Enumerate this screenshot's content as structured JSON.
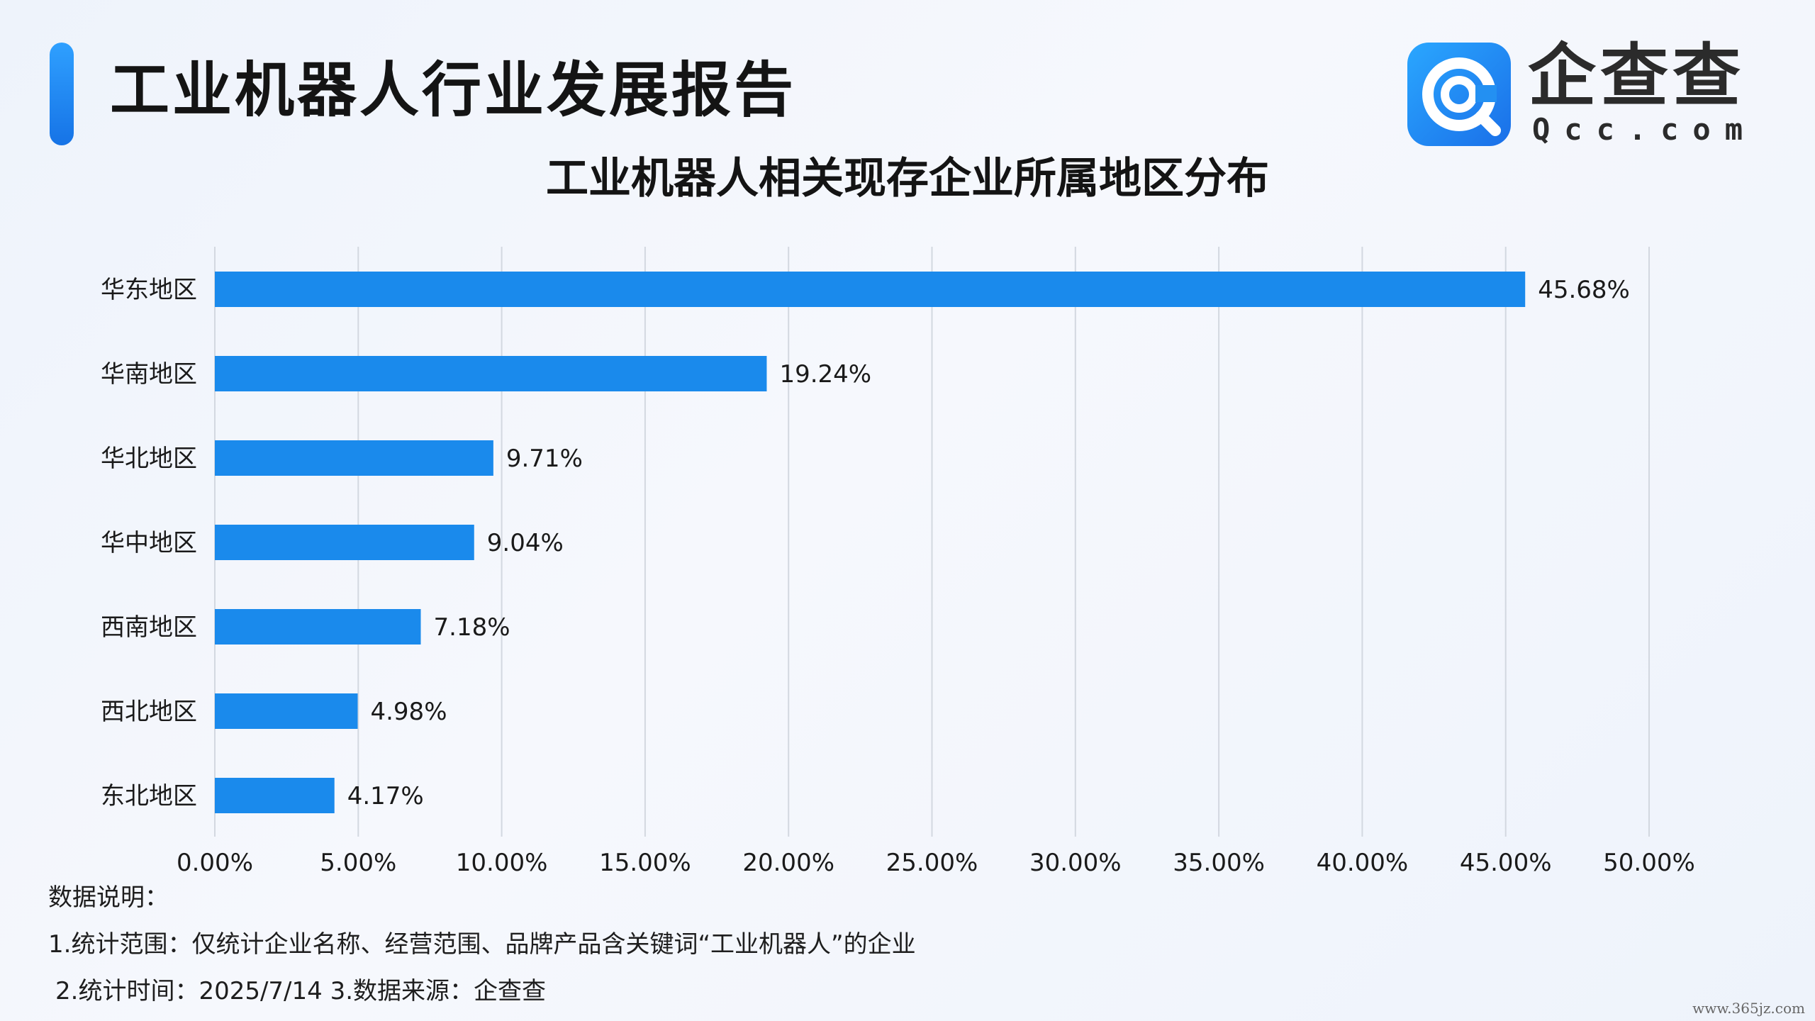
{
  "header": {
    "title": "工业机器人行业发展报告",
    "logo_name": "企查查",
    "logo_domain": "Qcc.com"
  },
  "chart_title": "工业机器人相关现存企业所属地区分布",
  "chart_data": {
    "type": "bar",
    "orientation": "horizontal",
    "title": "工业机器人相关现存企业所属地区分布",
    "categories": [
      "华东地区",
      "华南地区",
      "华北地区",
      "华中地区",
      "西南地区",
      "西北地区",
      "东北地区"
    ],
    "values": [
      45.68,
      19.24,
      9.71,
      9.04,
      7.18,
      4.98,
      4.17
    ],
    "value_labels": [
      "45.68%",
      "19.24%",
      "9.71%",
      "9.04%",
      "7.18%",
      "4.98%",
      "4.17%"
    ],
    "xlim": [
      0,
      50
    ],
    "xticks": [
      0,
      5,
      10,
      15,
      20,
      25,
      30,
      35,
      40,
      45,
      50
    ],
    "xtick_labels": [
      "0.00%",
      "5.00%",
      "10.00%",
      "15.00%",
      "20.00%",
      "25.00%",
      "30.00%",
      "35.00%",
      "40.00%",
      "45.00%",
      "50.00%"
    ],
    "grid": "vertical",
    "bar_color": "#1a8aec",
    "legend": "none"
  },
  "notes": {
    "heading": "数据说明：",
    "line1": "1.统计范围：仅统计企业名称、经营范围、品牌产品含关键词“工业机器人”的企业",
    "line2": "2.统计时间：2025/7/14  3.数据来源：企查查"
  },
  "watermark": "www.365jz.com",
  "colors": {
    "accent": "#1a8aec",
    "logo": "#1a7ff0",
    "grid": "#d3d8e0",
    "text": "#1a1a1a"
  },
  "icons": {
    "logo": "qcc-logo-icon"
  }
}
